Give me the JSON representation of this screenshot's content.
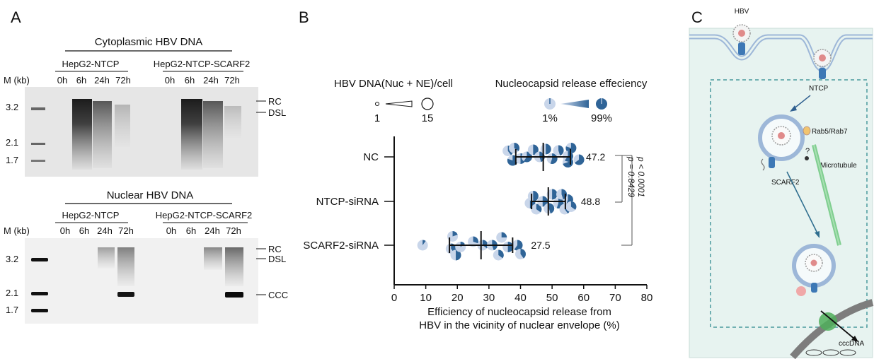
{
  "panelA": {
    "letter": "A",
    "blot1": {
      "title": "Cytoplasmic HBV DNA",
      "group1": "HepG2-NTCP",
      "group2": "HepG2-NTCP-SCARF2",
      "times": [
        "0h",
        "6h",
        "24h",
        "72h",
        "0h",
        "6h",
        "24h",
        "72h"
      ],
      "marker_header": "M (kb)",
      "markers": [
        "3.2",
        "2.1",
        "1.7"
      ],
      "bands": [
        "RC",
        "DSL"
      ]
    },
    "blot2": {
      "title": "Nuclear HBV DNA",
      "group1": "HepG2-NTCP",
      "group2": "HepG2-NTCP-SCARF2",
      "times": [
        "0h",
        "6h",
        "24h",
        "72h",
        "0h",
        "6h",
        "24h",
        "72h"
      ],
      "marker_header": "M (kb)",
      "markers": [
        "3.2",
        "2.1",
        "1.7"
      ],
      "bands": [
        "RC",
        "DSL",
        "CCC"
      ]
    }
  },
  "panelB": {
    "letter": "B",
    "legend": {
      "size_title": "HBV DNA(Nuc + NE)/cell",
      "size_min": "1",
      "size_max": "15",
      "fill_title": "Nucleocapsid release effeciency",
      "fill_min": "1%",
      "fill_max": "99%"
    },
    "stats": {
      "p1": "p < 0.0001",
      "p2": "p = 0.8429"
    },
    "chart_data": {
      "type": "scatter",
      "categories": [
        "NC",
        "NTCP-siRNA",
        "SCARF2-siRNA"
      ],
      "xlabel": "Efficiency of nucleocapsid release from HBV in the vicinity of nuclear envelope (%)",
      "xlabel_line1": "Efficiency of nucleocapsid release from",
      "xlabel_line2": "HBV in the vicinity of nuclear envelope (%)",
      "xlim": [
        0,
        80
      ],
      "xticks": [
        "0",
        "10",
        "20",
        "30",
        "40",
        "50",
        "60",
        "70",
        "80"
      ],
      "series": [
        {
          "category": "NC",
          "mean": 47.2,
          "sd_low": 38.5,
          "sd_high": 55.8,
          "mean_label": "47.2",
          "points": [
            {
              "x": 37.5,
              "y": 0.1,
              "frac": 0.8
            },
            {
              "x": 36,
              "y": -0.17,
              "frac": 0.4
            },
            {
              "x": 38,
              "y": -0.25,
              "frac": 0.35
            },
            {
              "x": 40,
              "y": 0.05,
              "frac": 0.5
            },
            {
              "x": 42,
              "y": 0.0,
              "frac": 0.6
            },
            {
              "x": 44,
              "y": -0.2,
              "frac": 0.5
            },
            {
              "x": 46,
              "y": 0.0,
              "frac": 0.45
            },
            {
              "x": 48,
              "y": -0.22,
              "frac": 0.5
            },
            {
              "x": 50,
              "y": 0.05,
              "frac": 0.55
            },
            {
              "x": 52,
              "y": -0.18,
              "frac": 0.45
            },
            {
              "x": 55,
              "y": 0.15,
              "frac": 0.7
            },
            {
              "x": 56,
              "y": -0.25,
              "frac": 0.8
            },
            {
              "x": 58.5,
              "y": 0.08,
              "frac": 0.65
            },
            {
              "x": 55,
              "y": -0.02,
              "frac": 0.6
            }
          ]
        },
        {
          "category": "NTCP-siRNA",
          "mean": 48.8,
          "sd_low": 43.5,
          "sd_high": 54.2,
          "mean_label": "48.8",
          "points": [
            {
              "x": 43,
              "y": 0.05,
              "frac": 0.5
            },
            {
              "x": 45,
              "y": 0.22,
              "frac": 0.35
            },
            {
              "x": 44,
              "y": -0.15,
              "frac": 0.5
            },
            {
              "x": 47,
              "y": 0.0,
              "frac": 0.5
            },
            {
              "x": 49,
              "y": 0.2,
              "frac": 0.45
            },
            {
              "x": 50,
              "y": -0.2,
              "frac": 0.5
            },
            {
              "x": 52,
              "y": 0.05,
              "frac": 0.55
            },
            {
              "x": 54,
              "y": 0.22,
              "frac": 0.4
            },
            {
              "x": 55,
              "y": -0.05,
              "frac": 0.55
            },
            {
              "x": 56,
              "y": 0.15,
              "frac": 0.35
            },
            {
              "x": 53,
              "y": -0.2,
              "frac": 0.45
            }
          ]
        },
        {
          "category": "SCARF2-siRNA",
          "mean": 27.5,
          "sd_low": 17.5,
          "sd_high": 37.5,
          "mean_label": "27.5",
          "points": [
            {
              "x": 9,
              "y": 0.0,
              "frac": 0.1
            },
            {
              "x": 18,
              "y": 0.1,
              "frac": 0.4
            },
            {
              "x": 18.5,
              "y": -0.25,
              "frac": 0.2
            },
            {
              "x": 19.5,
              "y": 0.28,
              "frac": 0.5
            },
            {
              "x": 21,
              "y": 0.05,
              "frac": 0.15
            },
            {
              "x": 25,
              "y": -0.1,
              "frac": 0.3
            },
            {
              "x": 28,
              "y": 0.0,
              "frac": 0.35
            },
            {
              "x": 31,
              "y": 0.0,
              "frac": 0.45
            },
            {
              "x": 33,
              "y": 0.28,
              "frac": 0.35
            },
            {
              "x": 34,
              "y": -0.22,
              "frac": 0.25
            },
            {
              "x": 36,
              "y": 0.05,
              "frac": 0.5
            },
            {
              "x": 39,
              "y": 0.0,
              "frac": 0.6
            },
            {
              "x": 40,
              "y": 0.25,
              "frac": 0.4
            }
          ]
        }
      ]
    }
  },
  "panelC": {
    "letter": "C",
    "labels": {
      "hbv": "HBV",
      "ntcp": "NTCP",
      "rab": "Rab5/Rab7",
      "question": "?",
      "microtubule": "Microtubule",
      "scarf2": "SCARF2",
      "cccdna": "cccDNA"
    }
  }
}
